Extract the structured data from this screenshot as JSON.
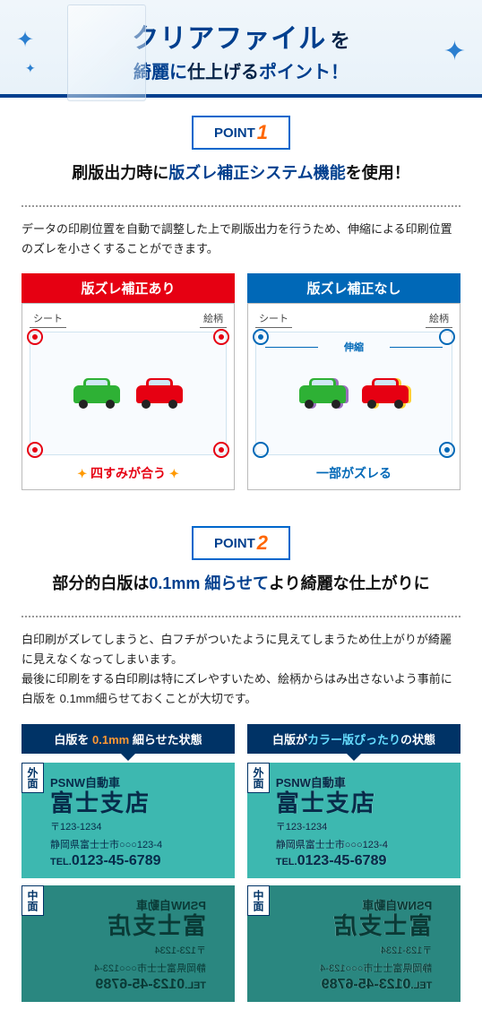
{
  "header": {
    "title_main": "クリアファイル",
    "title_wo": "を",
    "subtitle_pre": "綺麗に",
    "subtitle_mid": "仕上げる",
    "subtitle_post": "ポイント！"
  },
  "point1": {
    "badge_label": "POINT",
    "badge_num": "1",
    "title_pre": "刷版出力時に",
    "title_hl": "版ズレ補正システム機能",
    "title_post": "を使用！",
    "desc": "データの印刷位置を自動で調整した上で刷版出力を行うため、伸縮による印刷位置のズレを小さくすることができます。",
    "with": {
      "head": "版ズレ補正あり",
      "label_sheet": "シート",
      "label_art": "絵柄",
      "caption": "四すみが合う"
    },
    "without": {
      "head": "版ズレ補正なし",
      "label_sheet": "シート",
      "label_art": "絵柄",
      "stretch": "伸縮",
      "caption": "一部がズレる"
    }
  },
  "point2": {
    "badge_label": "POINT",
    "badge_num": "2",
    "title_pre": "部分的白版は",
    "title_hl": "0.1mm 細らせて",
    "title_post": "より綺麗な仕上がりに",
    "desc": "白印刷がズレてしまうと、白フチがついたように見えてしまうため仕上がりが綺麗に見えなくなってしまいます。\n最後に印刷をする白印刷は特にズレやすいため、絵柄からはみ出さないよう事前に白版を 0.1mm細らせておくことが大切です。",
    "left_head_pre": "白版を",
    "left_head_hl": "0.1mm",
    "left_head_post": "細らせた状態",
    "right_head_pre": "白版が",
    "right_head_hl": "カラー版ぴったり",
    "right_head_post": "の状態",
    "card": {
      "side_outer": "外面",
      "side_inner": "中面",
      "company": "PSNW自動車",
      "branch": "富士支店",
      "zip": "〒123-1234",
      "address": "静岡県富士士市○○○123-4",
      "tel_label": "TEL.",
      "tel": "0123-45-6789"
    }
  },
  "colors": {
    "navy": "#003f8e",
    "red": "#e60012",
    "blue": "#0068b7",
    "orange": "#ff6600",
    "teal": "#3db8b0",
    "dark_navy": "#003366"
  }
}
